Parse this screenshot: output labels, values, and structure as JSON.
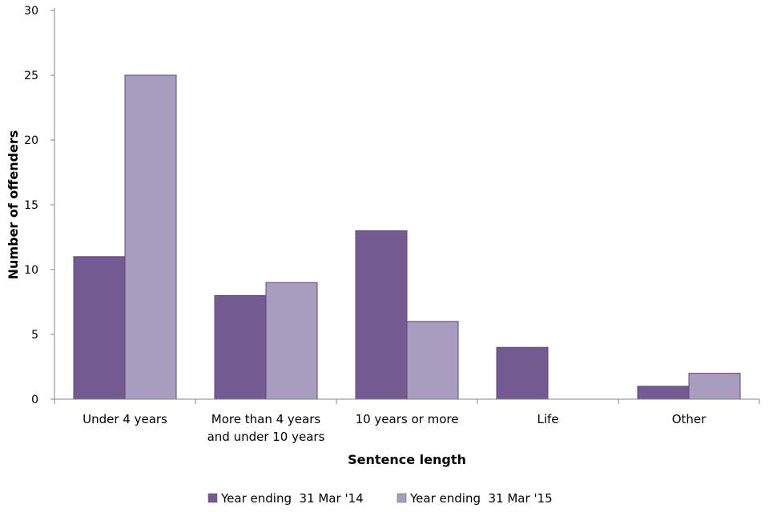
{
  "chart_data": {
    "type": "bar",
    "title": "",
    "xlabel": "Sentence length",
    "ylabel": "Number of offenders",
    "ylim": [
      0,
      30
    ],
    "yticks": [
      0,
      5,
      10,
      15,
      20,
      25,
      30
    ],
    "categories": [
      [
        "Under 4 years"
      ],
      [
        "More than 4 years",
        "and under 10 years"
      ],
      [
        "10 years or more"
      ],
      [
        "Life"
      ],
      [
        "Other"
      ]
    ],
    "series": [
      {
        "name": "Year ending  31 Mar '14",
        "color": "#735a92",
        "values": [
          11,
          8,
          13,
          4,
          1
        ]
      },
      {
        "name": "Year ending  31 Mar '15",
        "color": "#a89dbe",
        "values": [
          25,
          9,
          6,
          0,
          2
        ]
      }
    ],
    "grid": false,
    "legend": "bottom"
  }
}
